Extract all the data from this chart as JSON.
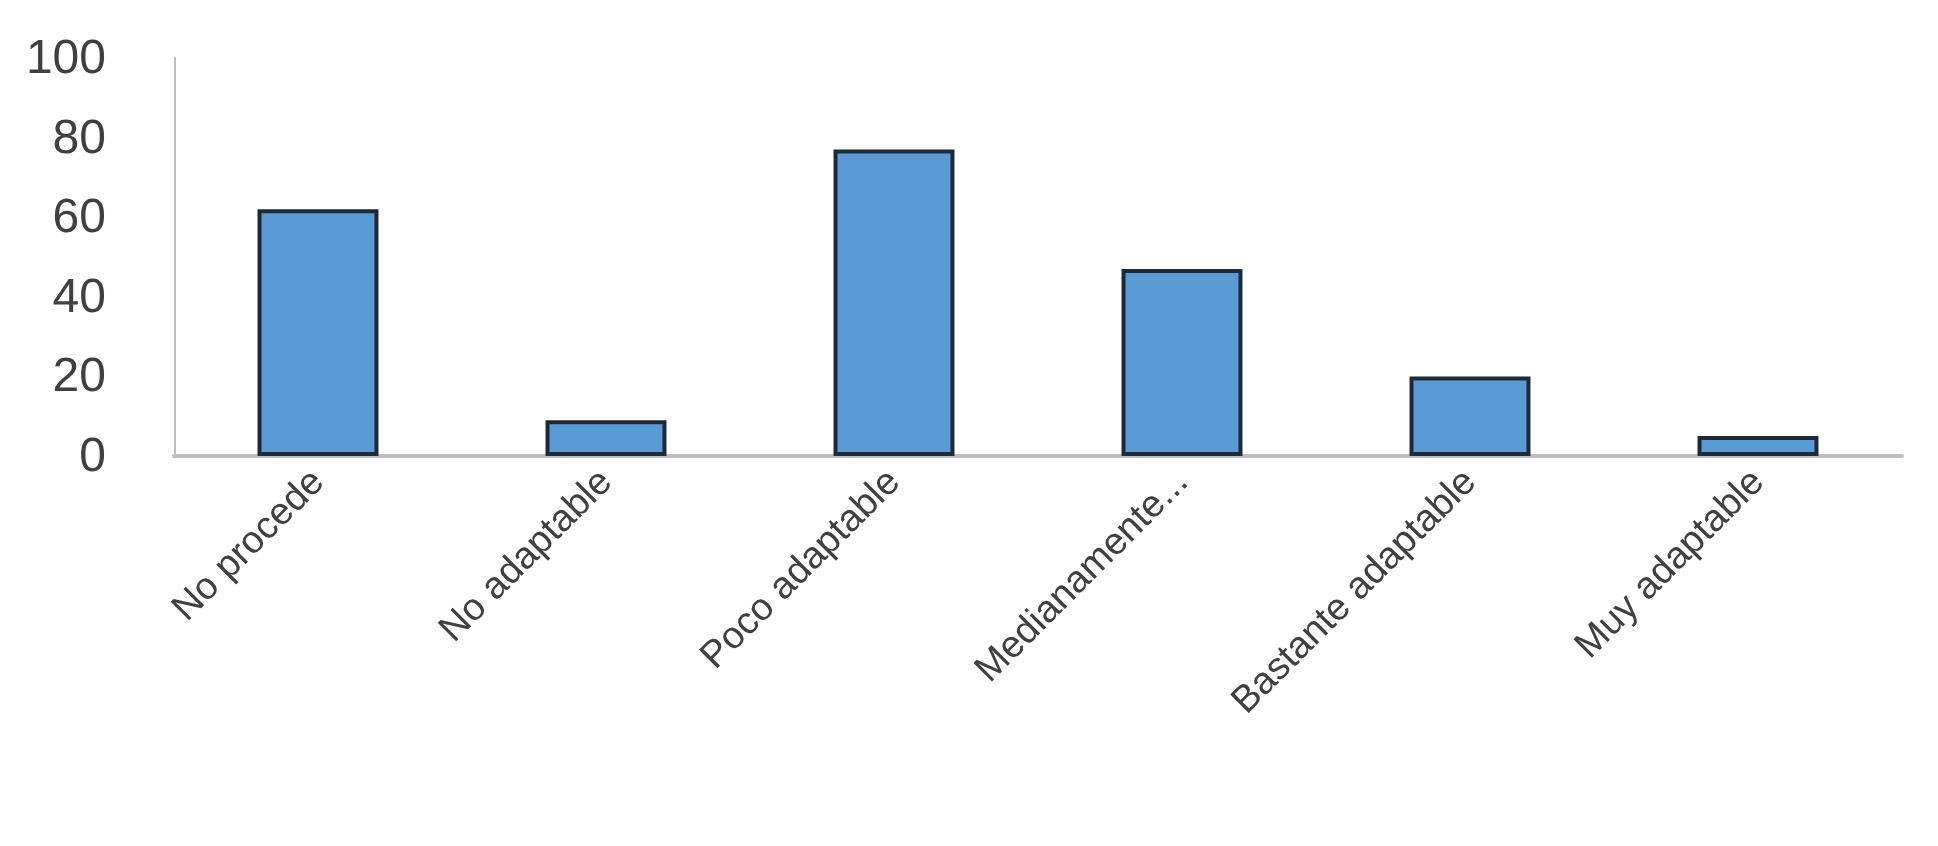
{
  "chart_data": {
    "type": "bar",
    "categories": [
      "No procede",
      "No adaptable",
      "Poco adaptable",
      "Medianamente...",
      "Bastante adaptable",
      "Muy adaptable"
    ],
    "values": [
      62,
      9,
      77,
      47,
      20,
      5
    ],
    "color": "#5b9bd5",
    "ylim": [
      0,
      100
    ],
    "yticks": [
      0,
      20,
      40,
      60,
      80,
      100
    ]
  }
}
